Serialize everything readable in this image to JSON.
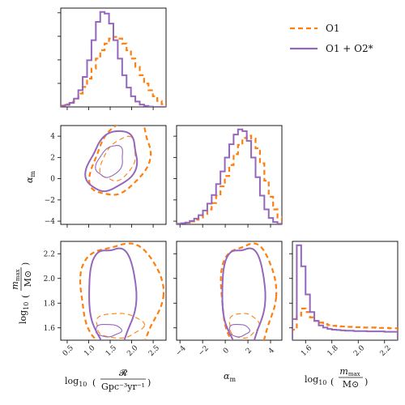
{
  "chart_data": {
    "type": "corner",
    "parameters": [
      {
        "key": "R",
        "label": "log10(R / Gpc^-3 yr^-1)",
        "range": [
          0.35,
          2.8
        ],
        "ticks": [
          "0.5",
          "1.0",
          "1.5",
          "2.0",
          "2.5"
        ],
        "tick_values": [
          0.5,
          1.0,
          1.5,
          2.0,
          2.5
        ]
      },
      {
        "key": "alpha",
        "label": "αm",
        "range": [
          -4.3,
          5.0
        ],
        "ticks": [
          "−4",
          "−2",
          "0",
          "2",
          "4"
        ],
        "tick_values": [
          -4,
          -2,
          0,
          2,
          4
        ]
      },
      {
        "key": "mmax",
        "label": "log10(mmax / M⊙)",
        "range": [
          1.5,
          2.3
        ],
        "ticks": [
          "1.6",
          "1.8",
          "2.0",
          "2.2"
        ],
        "tick_values": [
          1.6,
          1.8,
          2.0,
          2.2
        ]
      }
    ],
    "labels": {
      "x0_prefix": "log",
      "x0_sub": "10",
      "x0_num": "𝓡",
      "x0_den": "Gpc⁻³yr⁻¹",
      "alpha_main": "α",
      "alpha_sub": "m",
      "mmax_prefix": "log",
      "mmax_sub": "10",
      "mmax_num": "m",
      "mmax_num_sub": "max",
      "mmax_den": "M⊙"
    },
    "series": [
      {
        "name": "O1",
        "color": "#ff7f0e",
        "style": "dashed"
      },
      {
        "name": "O1 + O2*",
        "color": "#9467bd",
        "style": "solid"
      }
    ],
    "histograms": {
      "R": {
        "O1": [
          0.4,
          0.8,
          1.5,
          2.5,
          4.0,
          6.0,
          8.5,
          11.5,
          14.5,
          17.0,
          19.0,
          20.5,
          21.0,
          20.5,
          19.0,
          17.0,
          14.5,
          12.0,
          9.5,
          7.0,
          5.0,
          3.2,
          1.8,
          0.8
        ],
        "O1 + O2*": [
          0.3,
          0.6,
          1.2,
          2.5,
          5.0,
          9.0,
          14.0,
          20.0,
          25.5,
          28.5,
          28.0,
          25.0,
          20.0,
          14.5,
          9.5,
          5.8,
          3.2,
          1.6,
          0.7,
          0.3,
          0.1,
          0,
          0,
          0
        ]
      },
      "alpha": {
        "O1": [
          0.1,
          0.2,
          0.3,
          0.5,
          0.8,
          1.2,
          1.8,
          2.6,
          3.7,
          5.0,
          6.6,
          8.4,
          10.3,
          12.2,
          13.8,
          15.0,
          15.4,
          14.9,
          13.2,
          10.6,
          7.6,
          4.8,
          2.6,
          1.2
        ],
        "O1 + O2*": [
          0.1,
          0.2,
          0.3,
          0.6,
          1.0,
          1.6,
          2.4,
          3.6,
          5.1,
          7.0,
          9.2,
          11.6,
          13.9,
          15.6,
          16.5,
          16.2,
          14.5,
          11.6,
          8.2,
          5.0,
          2.6,
          1.1,
          0.4,
          0.1
        ]
      },
      "mmax": {
        "O1": [
          3.0,
          7.0,
          9.0,
          8.0,
          6.5,
          5.5,
          5.0,
          4.6,
          4.3,
          4.1,
          4.0,
          3.9,
          3.8,
          3.8,
          3.7,
          3.7,
          3.6,
          3.6,
          3.6,
          3.5,
          3.5,
          3.5,
          3.4,
          3.4
        ],
        "O1 + O2*": [
          6.0,
          27.0,
          21.0,
          13.0,
          8.0,
          5.5,
          4.2,
          3.6,
          3.2,
          3.0,
          2.9,
          2.8,
          2.7,
          2.7,
          2.6,
          2.6,
          2.6,
          2.5,
          2.5,
          2.5,
          2.5,
          2.4,
          2.4,
          2.4
        ]
      }
    },
    "contours": {
      "alpha_vs_R": {
        "O1": [
          {
            "center": [
              1.75,
              1.9
            ],
            "rx": 0.95,
            "ry": 2.4,
            "angle": 62
          },
          {
            "center": [
              1.7,
              1.8
            ],
            "rx": 0.55,
            "ry": 1.4,
            "angle": 60
          }
        ],
        "O1 + O2*": [
          {
            "center": [
              1.55,
              1.6
            ],
            "rx": 0.75,
            "ry": 2.1,
            "angle": 60
          },
          {
            "center": [
              1.5,
              1.6
            ],
            "rx": 0.4,
            "ry": 1.1,
            "angle": 58
          }
        ]
      },
      "mmax_vs_R": {
        "O1": [
          {
            "center": [
              1.75,
              1.85
            ],
            "rx": 0.95,
            "ry": 0.45
          },
          {
            "center": [
              1.7,
              1.62
            ],
            "rx": 0.55,
            "ry": 0.1
          }
        ],
        "O1 + O2*": [
          {
            "center": [
              1.55,
              1.85
            ],
            "rx": 0.55,
            "ry": 0.42
          },
          {
            "center": [
              1.45,
              1.58
            ],
            "rx": 0.3,
            "ry": 0.05
          }
        ]
      },
      "mmax_vs_alpha": {
        "O1": [
          {
            "center": [
              2.0,
              1.85
            ],
            "rx": 2.4,
            "ry": 0.45
          },
          {
            "center": [
              1.6,
              1.62
            ],
            "rx": 1.3,
            "ry": 0.1
          }
        ],
        "O1 + O2*": [
          {
            "center": [
              1.6,
              1.85
            ],
            "rx": 1.9,
            "ry": 0.42
          },
          {
            "center": [
              1.2,
              1.58
            ],
            "rx": 0.9,
            "ry": 0.05
          }
        ]
      }
    },
    "legend_position": "top-right"
  }
}
